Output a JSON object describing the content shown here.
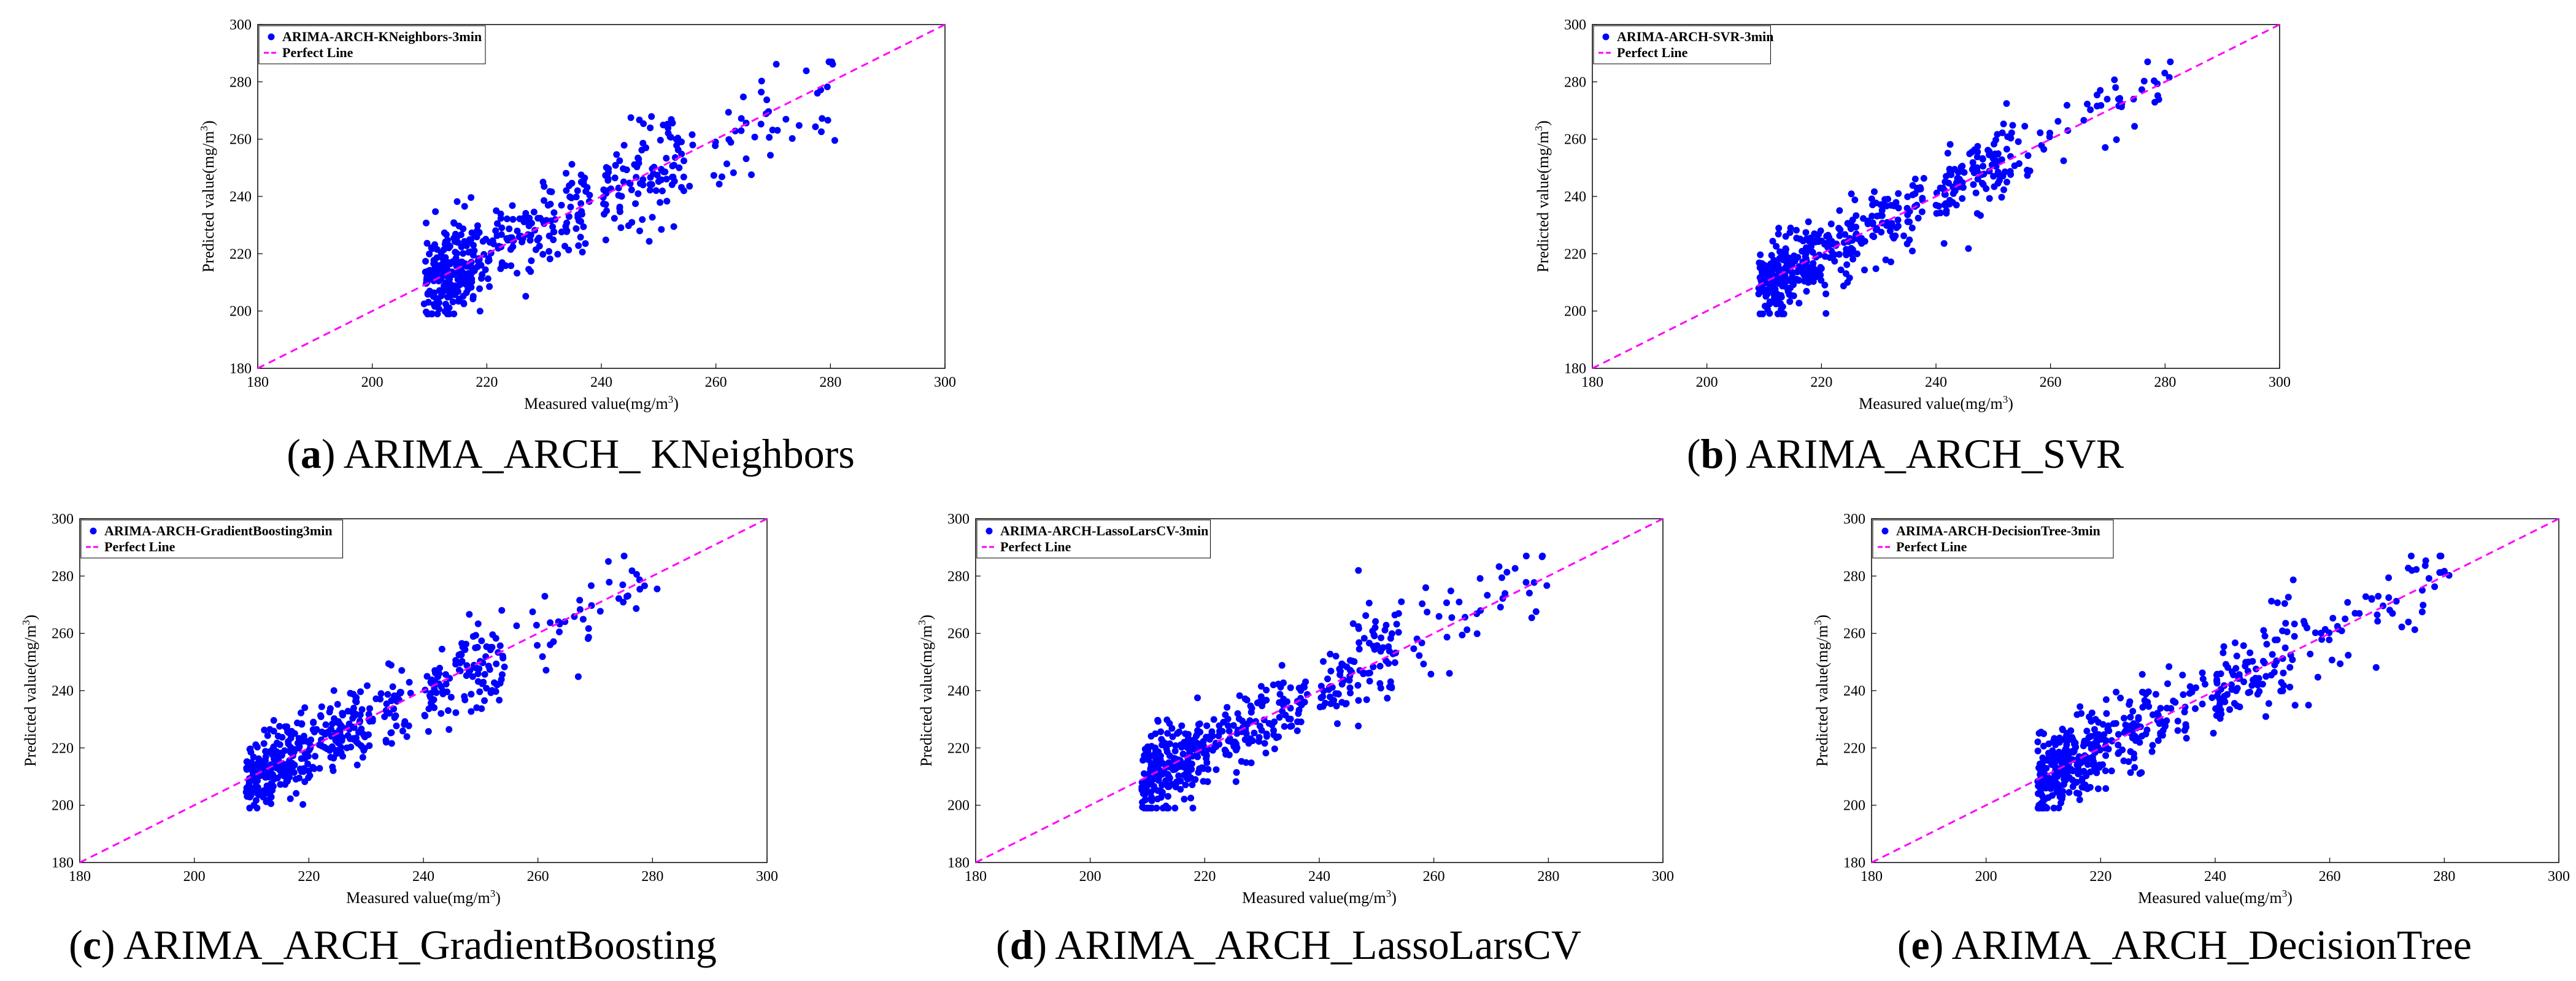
{
  "chart_data": [
    {
      "type": "scatter",
      "id": "a",
      "caption_letter": "a",
      "caption_text": "ARIMA_ARCH_ KNeighbors",
      "series_label": "ARIMA-ARCH-KNeighbors-3min",
      "perfect_label": "Perfect Line",
      "xlabel": "Measured value(mg/m",
      "ylabel": "Predicted value(mg/m",
      "unit_sup": "3",
      "xlim": [
        180,
        300
      ],
      "ylim": [
        180,
        300
      ],
      "xticks": [
        180,
        200,
        220,
        240,
        260,
        280,
        300
      ],
      "yticks": [
        180,
        200,
        220,
        240,
        260,
        280,
        300
      ],
      "noise": 9,
      "seed": 11,
      "point_color": "#0000ff",
      "line_color": "#ff00ff"
    },
    {
      "type": "scatter",
      "id": "b",
      "caption_letter": "b",
      "caption_text": "ARIMA_ARCH_SVR",
      "series_label": "ARIMA-ARCH-SVR-3min",
      "perfect_label": "Perfect Line",
      "xlabel": "Measured value(mg/m",
      "ylabel": "Predicted value(mg/m",
      "unit_sup": "3",
      "xlim": [
        180,
        300
      ],
      "ylim": [
        180,
        300
      ],
      "xticks": [
        180,
        200,
        220,
        240,
        260,
        280,
        300
      ],
      "yticks": [
        180,
        200,
        220,
        240,
        260,
        280,
        300
      ],
      "noise": 7,
      "seed": 23,
      "point_color": "#0000ff",
      "line_color": "#ff00ff"
    },
    {
      "type": "scatter",
      "id": "c",
      "caption_letter": "c",
      "caption_text": "ARIMA_ARCH_GradientBoosting",
      "series_label": "ARIMA-ARCH-GradientBoosting3min",
      "perfect_label": "Perfect Line",
      "xlabel": "Measured value(mg/m",
      "ylabel": "Predicted value(mg/m",
      "unit_sup": "3",
      "xlim": [
        180,
        300
      ],
      "ylim": [
        180,
        300
      ],
      "xticks": [
        180,
        200,
        220,
        240,
        260,
        280,
        300
      ],
      "yticks": [
        180,
        200,
        220,
        240,
        260,
        280,
        300
      ],
      "noise": 7.5,
      "seed": 37,
      "point_color": "#0000ff",
      "line_color": "#ff00ff"
    },
    {
      "type": "scatter",
      "id": "d",
      "caption_letter": "d",
      "caption_text": "ARIMA_ARCH_LassoLarsCV",
      "series_label": "ARIMA-ARCH-LassoLarsCV-3min",
      "perfect_label": "Perfect Line",
      "xlabel": "Measured value(mg/m",
      "ylabel": "Predicted value(mg/m",
      "unit_sup": "3",
      "xlim": [
        180,
        300
      ],
      "ylim": [
        180,
        300
      ],
      "xticks": [
        180,
        200,
        220,
        240,
        260,
        280,
        300
      ],
      "yticks": [
        180,
        200,
        220,
        240,
        260,
        280,
        300
      ],
      "noise": 8,
      "seed": 51,
      "point_color": "#0000ff",
      "line_color": "#ff00ff"
    },
    {
      "type": "scatter",
      "id": "e",
      "caption_letter": "e",
      "caption_text": "ARIMA_ARCH_DecisionTree",
      "series_label": "ARIMA-ARCH-DecisionTree-3min",
      "perfect_label": "Perfect Line",
      "xlabel": "Measured value(mg/m",
      "ylabel": "Predicted value(mg/m",
      "unit_sup": "3",
      "xlim": [
        180,
        300
      ],
      "ylim": [
        180,
        300
      ],
      "xticks": [
        180,
        200,
        220,
        240,
        260,
        280,
        300
      ],
      "yticks": [
        180,
        200,
        220,
        240,
        260,
        280,
        300
      ],
      "noise": 8,
      "seed": 67,
      "point_color": "#0000ff",
      "line_color": "#ff00ff"
    }
  ]
}
